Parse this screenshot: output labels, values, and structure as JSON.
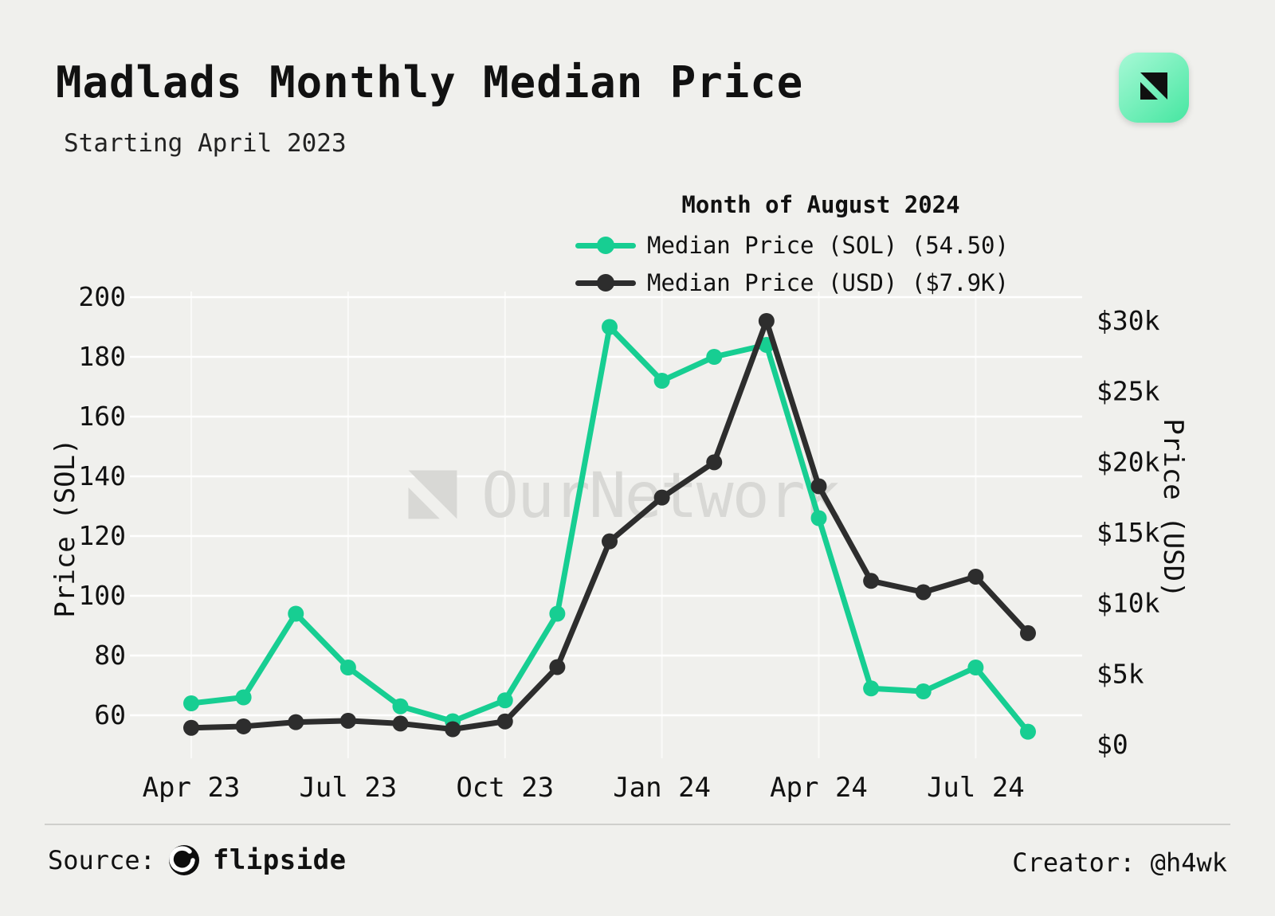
{
  "header": {
    "title": "Madlads Monthly Median Price",
    "subtitle": "Starting April 2023"
  },
  "brand": {
    "icon": "ournetwork-mark",
    "gradient_from": "#A7F9D6",
    "gradient_to": "#46E6A1",
    "mark_color": "#101010"
  },
  "legend": {
    "title": "Month of August 2024",
    "items": [
      {
        "label": "Median Price (SOL) (54.50)",
        "color": "#17CE92"
      },
      {
        "label": "Median Price (USD) ($7.9K)",
        "color": "#2D2D2D"
      }
    ]
  },
  "watermark": {
    "text": "OurNetwork"
  },
  "footer": {
    "source_label": "Source:",
    "source_name": "flipside",
    "creator": "Creator: @h4wk"
  },
  "chart_data": {
    "type": "line",
    "title": "Madlads Monthly Median Price",
    "subtitle": "Starting April 2023",
    "grid": true,
    "legend_position": "top-right",
    "x": [
      "Apr 23",
      "May 23",
      "Jun 23",
      "Jul 23",
      "Aug 23",
      "Sep 23",
      "Oct 23",
      "Nov 23",
      "Dec 23",
      "Jan 24",
      "Feb 24",
      "Mar 24",
      "Apr 24",
      "May 24",
      "Jun 24",
      "Jul 24",
      "Aug 24"
    ],
    "x_tick_indices": [
      0,
      3,
      6,
      9,
      12,
      15
    ],
    "series": [
      {
        "name": "Median Price (SOL)",
        "axis": "left",
        "color": "#17CE92",
        "last_value_label": "54.50",
        "values": [
          64,
          66,
          94,
          76,
          63,
          58,
          65,
          94,
          190,
          172,
          180,
          184,
          126,
          69,
          68,
          76,
          54.5
        ]
      },
      {
        "name": "Median Price (USD)",
        "axis": "right",
        "color": "#2D2D2D",
        "last_value_label": "$7.9K",
        "values": [
          1200,
          1300,
          1600,
          1700,
          1500,
          1100,
          1650,
          5500,
          14400,
          17500,
          20000,
          30000,
          18300,
          11600,
          10800,
          11900,
          7900
        ]
      }
    ],
    "left_axis": {
      "label": "Price (SOL)",
      "ticks": [
        60,
        80,
        100,
        120,
        140,
        160,
        180,
        200
      ],
      "range": [
        48,
        203
      ]
    },
    "right_axis": {
      "label": "Price (USD)",
      "ticks": [
        {
          "v": 0,
          "label": "$0"
        },
        {
          "v": 5000,
          "label": "$5k"
        },
        {
          "v": 10000,
          "label": "$10k"
        },
        {
          "v": 15000,
          "label": "$15k"
        },
        {
          "v": 20000,
          "label": "$20k"
        },
        {
          "v": 25000,
          "label": "$25k"
        },
        {
          "v": 30000,
          "label": "$30k"
        }
      ],
      "range": [
        0,
        30000
      ]
    }
  }
}
